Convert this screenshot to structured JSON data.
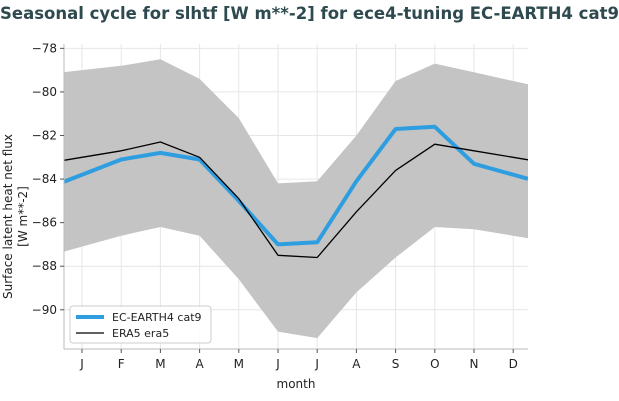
{
  "chart_data": {
    "type": "line",
    "title": "Seasonal cycle for slhtf [W m**-2] for ece4-tuning EC-EARTH4 cat9",
    "xlabel": "month",
    "ylabel": [
      "Surface latent heat net flux",
      "[W m**-2]"
    ],
    "categories": [
      "J",
      "F",
      "M",
      "A",
      "M",
      "J",
      "J",
      "A",
      "S",
      "O",
      "N",
      "D"
    ],
    "ylim": [
      -91.8,
      -77.8
    ],
    "yticks": [
      -90,
      -88,
      -86,
      -84,
      -82,
      -80,
      -78
    ],
    "ytick_labels": [
      "−90",
      "−88",
      "−86",
      "−84",
      "−82",
      "−80",
      "−78"
    ],
    "grid": true,
    "legend_position": "lower-left",
    "series": [
      {
        "name": "EC-EARTH4 cat9",
        "color": "#2f9ee0",
        "values": [
          -83.8,
          -83.1,
          -82.8,
          -83.1,
          -85.0,
          -87.0,
          -86.9,
          -84.1,
          -81.7,
          -81.6,
          -83.3,
          -83.8
        ]
      },
      {
        "name": "ERA5 era5",
        "color": "#000000",
        "values": [
          -83.0,
          -82.7,
          -82.3,
          -83.0,
          -84.9,
          -87.5,
          -87.6,
          -85.5,
          -83.6,
          -82.4,
          -82.7,
          -83.0
        ]
      }
    ],
    "band": {
      "color": "#c4c4c4",
      "upper": [
        -79.0,
        -78.8,
        -78.5,
        -79.4,
        -81.2,
        -84.2,
        -84.1,
        -82.0,
        -79.5,
        -78.7,
        -79.1,
        -79.5
      ],
      "lower": [
        -87.1,
        -86.6,
        -86.2,
        -86.6,
        -88.6,
        -91.0,
        -91.3,
        -89.2,
        -87.6,
        -86.2,
        -86.3,
        -86.6
      ]
    }
  }
}
